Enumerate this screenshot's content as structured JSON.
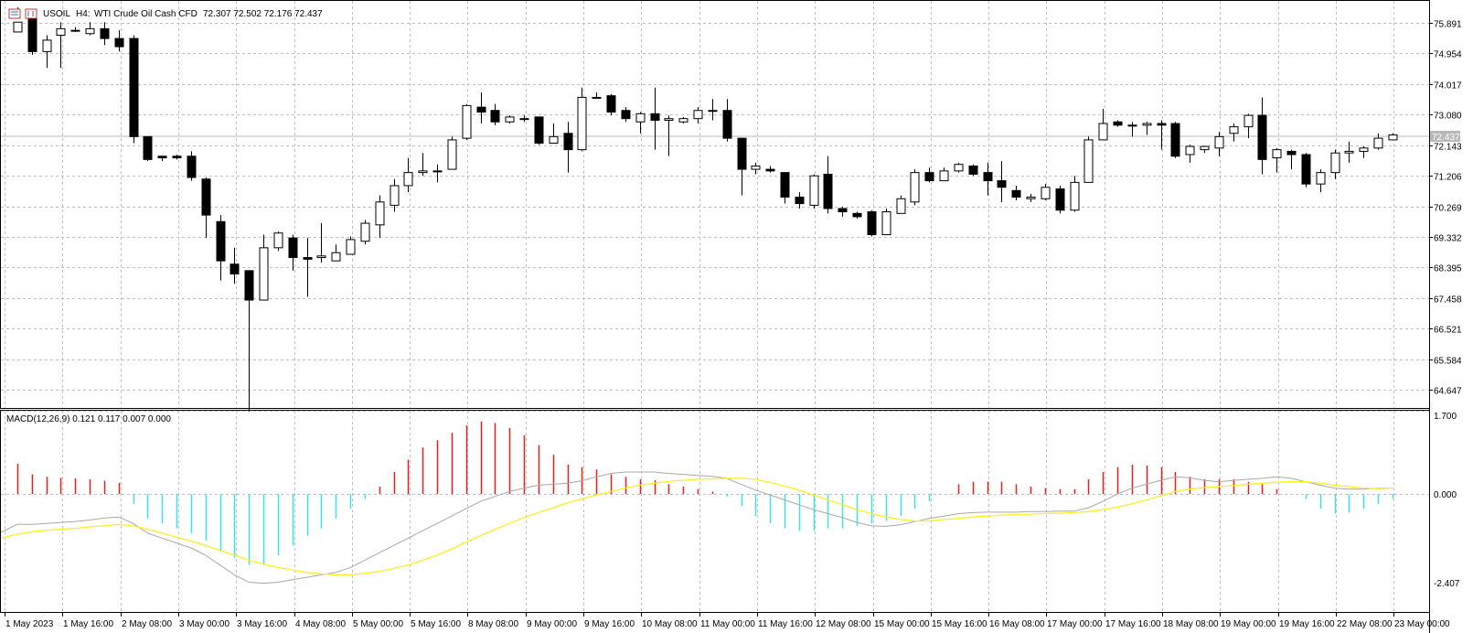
{
  "window": {
    "symbol": "USOIL",
    "timeframe": "H4:",
    "description": "WTI Crude Oil Cash CFD",
    "ohlc": "72.307 72.502 72.176 72.437",
    "price_tag": "72.437"
  },
  "macd": {
    "label": "MACD(12,26,9) 0.121 0.117 0.007 0.000",
    "y_max_label": "1.700",
    "y_zero_label": "0.000",
    "y_min_label": "-2.407"
  },
  "price_axis_labels": [
    "75.891",
    "74.954",
    "74.017",
    "73.080",
    "72.143",
    "71.206",
    "70.269",
    "69.332",
    "68.395",
    "67.458",
    "66.521",
    "65.584",
    "64.647"
  ],
  "time_axis_labels": [
    "1 May 2023",
    "1 May 16:00",
    "2 May 08:00",
    "3 May 00:00",
    "3 May 16:00",
    "4 May 08:00",
    "5 May 00:00",
    "5 May 16:00",
    "8 May 08:00",
    "9 May 00:00",
    "9 May 16:00",
    "10 May 08:00",
    "11 May 00:00",
    "11 May 16:00",
    "12 May 08:00",
    "15 May 00:00",
    "15 May 16:00",
    "16 May 08:00",
    "17 May 00:00",
    "17 May 16:00",
    "18 May 08:00",
    "19 May 00:00",
    "19 May 16:00",
    "22 May 08:00",
    "23 May 00:00"
  ],
  "colors": {
    "bull": "#ffffff",
    "bear": "#000000",
    "grid": "#c0c0c0",
    "macd_pos": "#ef1c1c",
    "macd_neg": "#3ee0e6",
    "macd_line": "#a8a8a8",
    "signal_line": "#ffee22"
  },
  "chart_data": {
    "type": "candlestick",
    "price_ylim": [
      64.1,
      76.55
    ],
    "macd_ylim": [
      -2.407,
      1.7
    ],
    "candles": [
      [
        75.6,
        76.35,
        75.9,
        76.0
      ],
      [
        76.0,
        75.3,
        75.0,
        74.9
      ],
      [
        75.0,
        75.5,
        75.35,
        74.5
      ],
      [
        75.5,
        75.9,
        75.7,
        74.5
      ],
      [
        75.65,
        75.75,
        75.65,
        75.6
      ],
      [
        75.55,
        75.9,
        75.7,
        75.5
      ],
      [
        75.7,
        75.9,
        75.4,
        75.2
      ],
      [
        75.4,
        75.65,
        75.15,
        75.0
      ],
      [
        75.4,
        75.5,
        72.4,
        72.2
      ],
      [
        72.4,
        72.4,
        71.7,
        71.65
      ],
      [
        71.8,
        71.8,
        71.75,
        71.65
      ],
      [
        71.8,
        71.85,
        71.75,
        71.7
      ],
      [
        71.8,
        71.95,
        71.15,
        71.05
      ],
      [
        71.1,
        71.15,
        70.0,
        69.3
      ],
      [
        69.8,
        70.0,
        68.6,
        68.0
      ],
      [
        68.5,
        69.0,
        68.2,
        67.9
      ],
      [
        68.3,
        68.3,
        67.4,
        64.0
      ],
      [
        67.4,
        69.4,
        69.0,
        67.4
      ],
      [
        69.0,
        69.5,
        69.45,
        68.9
      ],
      [
        69.3,
        69.4,
        68.7,
        68.3
      ],
      [
        68.7,
        69.3,
        68.65,
        67.5
      ],
      [
        68.7,
        69.75,
        68.75,
        68.55
      ],
      [
        68.6,
        69.1,
        68.85,
        68.6
      ],
      [
        68.8,
        69.35,
        69.25,
        68.8
      ],
      [
        69.2,
        69.85,
        69.75,
        69.1
      ],
      [
        69.7,
        70.6,
        70.4,
        69.3
      ],
      [
        70.3,
        71.1,
        70.9,
        70.1
      ],
      [
        70.9,
        71.75,
        71.3,
        70.7
      ],
      [
        71.3,
        71.9,
        71.35,
        71.2
      ],
      [
        71.35,
        71.55,
        71.35,
        71.0
      ],
      [
        71.4,
        72.4,
        72.3,
        71.4
      ],
      [
        72.35,
        73.4,
        73.35,
        72.3
      ],
      [
        73.3,
        73.75,
        73.15,
        72.8
      ],
      [
        73.2,
        73.4,
        72.85,
        72.75
      ],
      [
        72.85,
        73.05,
        73.0,
        72.8
      ],
      [
        72.95,
        73.05,
        72.95,
        72.85
      ],
      [
        73.0,
        73.0,
        72.2,
        72.15
      ],
      [
        72.2,
        72.8,
        72.4,
        72.2
      ],
      [
        72.5,
        72.85,
        72.0,
        71.3
      ],
      [
        72.0,
        73.9,
        73.6,
        71.95
      ],
      [
        73.6,
        73.75,
        73.6,
        73.6
      ],
      [
        73.65,
        73.7,
        73.15,
        73.05
      ],
      [
        73.2,
        73.3,
        72.95,
        72.85
      ],
      [
        72.85,
        73.15,
        73.1,
        72.5
      ],
      [
        73.1,
        73.9,
        72.9,
        72.0
      ],
      [
        72.9,
        73.05,
        72.95,
        71.8
      ],
      [
        72.85,
        73.0,
        72.95,
        72.8
      ],
      [
        72.95,
        73.3,
        73.2,
        72.8
      ],
      [
        73.2,
        73.55,
        73.2,
        72.9
      ],
      [
        73.2,
        73.55,
        72.35,
        72.25
      ],
      [
        72.35,
        72.35,
        71.4,
        70.6
      ],
      [
        71.4,
        71.6,
        71.5,
        71.25
      ],
      [
        71.4,
        71.5,
        71.35,
        71.3
      ],
      [
        71.3,
        71.3,
        70.55,
        70.35
      ],
      [
        70.55,
        70.7,
        70.35,
        70.2
      ],
      [
        70.3,
        71.25,
        71.2,
        70.2
      ],
      [
        71.25,
        71.8,
        70.2,
        70.05
      ],
      [
        70.2,
        70.25,
        70.1,
        69.95
      ],
      [
        70.05,
        70.1,
        69.95,
        69.9
      ],
      [
        70.1,
        70.15,
        69.4,
        69.35
      ],
      [
        69.4,
        70.2,
        70.1,
        69.4
      ],
      [
        70.05,
        70.6,
        70.5,
        70.05
      ],
      [
        70.4,
        71.4,
        71.3,
        70.3
      ],
      [
        71.3,
        71.45,
        71.05,
        71.0
      ],
      [
        71.05,
        71.45,
        71.35,
        71.05
      ],
      [
        71.35,
        71.6,
        71.55,
        71.3
      ],
      [
        71.5,
        71.55,
        71.25,
        71.2
      ],
      [
        71.3,
        71.6,
        71.05,
        70.6
      ],
      [
        71.05,
        71.65,
        70.85,
        70.4
      ],
      [
        70.75,
        70.9,
        70.55,
        70.45
      ],
      [
        70.5,
        70.65,
        70.55,
        70.4
      ],
      [
        70.5,
        70.95,
        70.85,
        70.45
      ],
      [
        70.8,
        70.9,
        70.15,
        70.05
      ],
      [
        70.15,
        71.2,
        71.0,
        70.1
      ],
      [
        71.0,
        72.4,
        72.3,
        71.0
      ],
      [
        72.3,
        73.25,
        72.8,
        72.3
      ],
      [
        72.85,
        72.9,
        72.75,
        72.7
      ],
      [
        72.75,
        72.85,
        72.75,
        72.4
      ],
      [
        72.75,
        72.85,
        72.8,
        72.45
      ],
      [
        72.8,
        72.9,
        72.75,
        72.0
      ],
      [
        72.8,
        72.85,
        71.8,
        71.75
      ],
      [
        71.85,
        72.15,
        72.1,
        71.6
      ],
      [
        72.0,
        72.1,
        72.1,
        71.9
      ],
      [
        72.05,
        72.55,
        72.4,
        71.8
      ],
      [
        72.5,
        72.8,
        72.7,
        72.25
      ],
      [
        72.7,
        73.1,
        73.05,
        72.35
      ],
      [
        73.05,
        73.6,
        71.7,
        71.25
      ],
      [
        71.75,
        72.05,
        72.0,
        71.3
      ],
      [
        71.95,
        72.0,
        71.85,
        71.4
      ],
      [
        71.85,
        71.9,
        70.95,
        70.85
      ],
      [
        70.95,
        71.4,
        71.3,
        70.7
      ],
      [
        71.3,
        72.0,
        71.9,
        71.1
      ],
      [
        71.9,
        72.25,
        71.95,
        71.6
      ],
      [
        71.95,
        72.1,
        72.05,
        71.75
      ],
      [
        72.05,
        72.5,
        72.35,
        72.0
      ],
      [
        72.3,
        72.5,
        72.45,
        72.3
      ]
    ],
    "macd_histogram": [
      0.62,
      0.4,
      0.35,
      0.33,
      0.32,
      0.3,
      0.27,
      0.23,
      -0.2,
      -0.5,
      -0.6,
      -0.7,
      -0.8,
      -0.95,
      -1.15,
      -1.3,
      -1.45,
      -1.45,
      -1.25,
      -1.05,
      -0.85,
      -0.7,
      -0.5,
      -0.3,
      -0.1,
      0.15,
      0.45,
      0.7,
      0.95,
      1.1,
      1.25,
      1.4,
      1.48,
      1.45,
      1.35,
      1.2,
      1.0,
      0.8,
      0.6,
      0.55,
      0.5,
      0.4,
      0.35,
      0.3,
      0.28,
      0.2,
      0.15,
      0.1,
      0.05,
      -0.05,
      -0.25,
      -0.45,
      -0.6,
      -0.7,
      -0.75,
      -0.75,
      -0.7,
      -0.7,
      -0.65,
      -0.6,
      -0.55,
      -0.45,
      -0.3,
      -0.15,
      0.0,
      0.2,
      0.25,
      0.25,
      0.25,
      0.2,
      0.15,
      0.12,
      0.1,
      0.1,
      0.3,
      0.45,
      0.55,
      0.6,
      0.58,
      0.55,
      0.45,
      0.35,
      0.3,
      0.3,
      0.3,
      0.25,
      0.2,
      0.1,
      0.0,
      -0.1,
      -0.3,
      -0.4,
      -0.38,
      -0.3,
      -0.2,
      -0.1
    ],
    "macd_line": [
      -0.62,
      -0.62,
      -0.6,
      -0.58,
      -0.56,
      -0.53,
      -0.49,
      -0.47,
      -0.6,
      -0.8,
      -0.9,
      -1.0,
      -1.1,
      -1.25,
      -1.45,
      -1.65,
      -1.8,
      -1.82,
      -1.8,
      -1.75,
      -1.7,
      -1.65,
      -1.6,
      -1.5,
      -1.35,
      -1.2,
      -1.05,
      -0.9,
      -0.75,
      -0.6,
      -0.45,
      -0.3,
      -0.15,
      -0.05,
      0.05,
      0.12,
      0.18,
      0.2,
      0.22,
      0.27,
      0.35,
      0.42,
      0.45,
      0.45,
      0.45,
      0.42,
      0.4,
      0.38,
      0.36,
      0.32,
      0.2,
      0.08,
      -0.02,
      -0.12,
      -0.22,
      -0.32,
      -0.4,
      -0.48,
      -0.58,
      -0.65,
      -0.66,
      -0.63,
      -0.56,
      -0.5,
      -0.45,
      -0.4,
      -0.38,
      -0.37,
      -0.37,
      -0.37,
      -0.36,
      -0.36,
      -0.35,
      -0.35,
      -0.28,
      -0.15,
      0.0,
      0.12,
      0.2,
      0.28,
      0.35,
      0.33,
      0.28,
      0.25,
      0.28,
      0.3,
      0.32,
      0.35,
      0.32,
      0.25,
      0.18,
      0.12,
      0.1,
      0.1,
      0.12,
      0.12
    ],
    "signal_line": [
      -0.82,
      -0.77,
      -0.74,
      -0.72,
      -0.7,
      -0.67,
      -0.65,
      -0.62,
      -0.65,
      -0.72,
      -0.8,
      -0.88,
      -0.96,
      -1.05,
      -1.15,
      -1.25,
      -1.35,
      -1.43,
      -1.5,
      -1.55,
      -1.6,
      -1.63,
      -1.65,
      -1.65,
      -1.62,
      -1.58,
      -1.52,
      -1.45,
      -1.35,
      -1.25,
      -1.12,
      -0.98,
      -0.85,
      -0.72,
      -0.6,
      -0.48,
      -0.38,
      -0.28,
      -0.18,
      -0.1,
      -0.02,
      0.05,
      0.12,
      0.18,
      0.22,
      0.26,
      0.28,
      0.3,
      0.31,
      0.32,
      0.32,
      0.3,
      0.24,
      0.16,
      0.08,
      -0.02,
      -0.12,
      -0.22,
      -0.32,
      -0.4,
      -0.47,
      -0.52,
      -0.55,
      -0.55,
      -0.52,
      -0.5,
      -0.47,
      -0.45,
      -0.43,
      -0.42,
      -0.41,
      -0.4,
      -0.39,
      -0.38,
      -0.36,
      -0.32,
      -0.27,
      -0.2,
      -0.12,
      -0.04,
      0.05,
      0.1,
      0.13,
      0.15,
      0.17,
      0.2,
      0.22,
      0.24,
      0.25,
      0.25,
      0.22,
      0.18,
      0.15,
      0.12,
      0.11,
      0.12
    ]
  }
}
